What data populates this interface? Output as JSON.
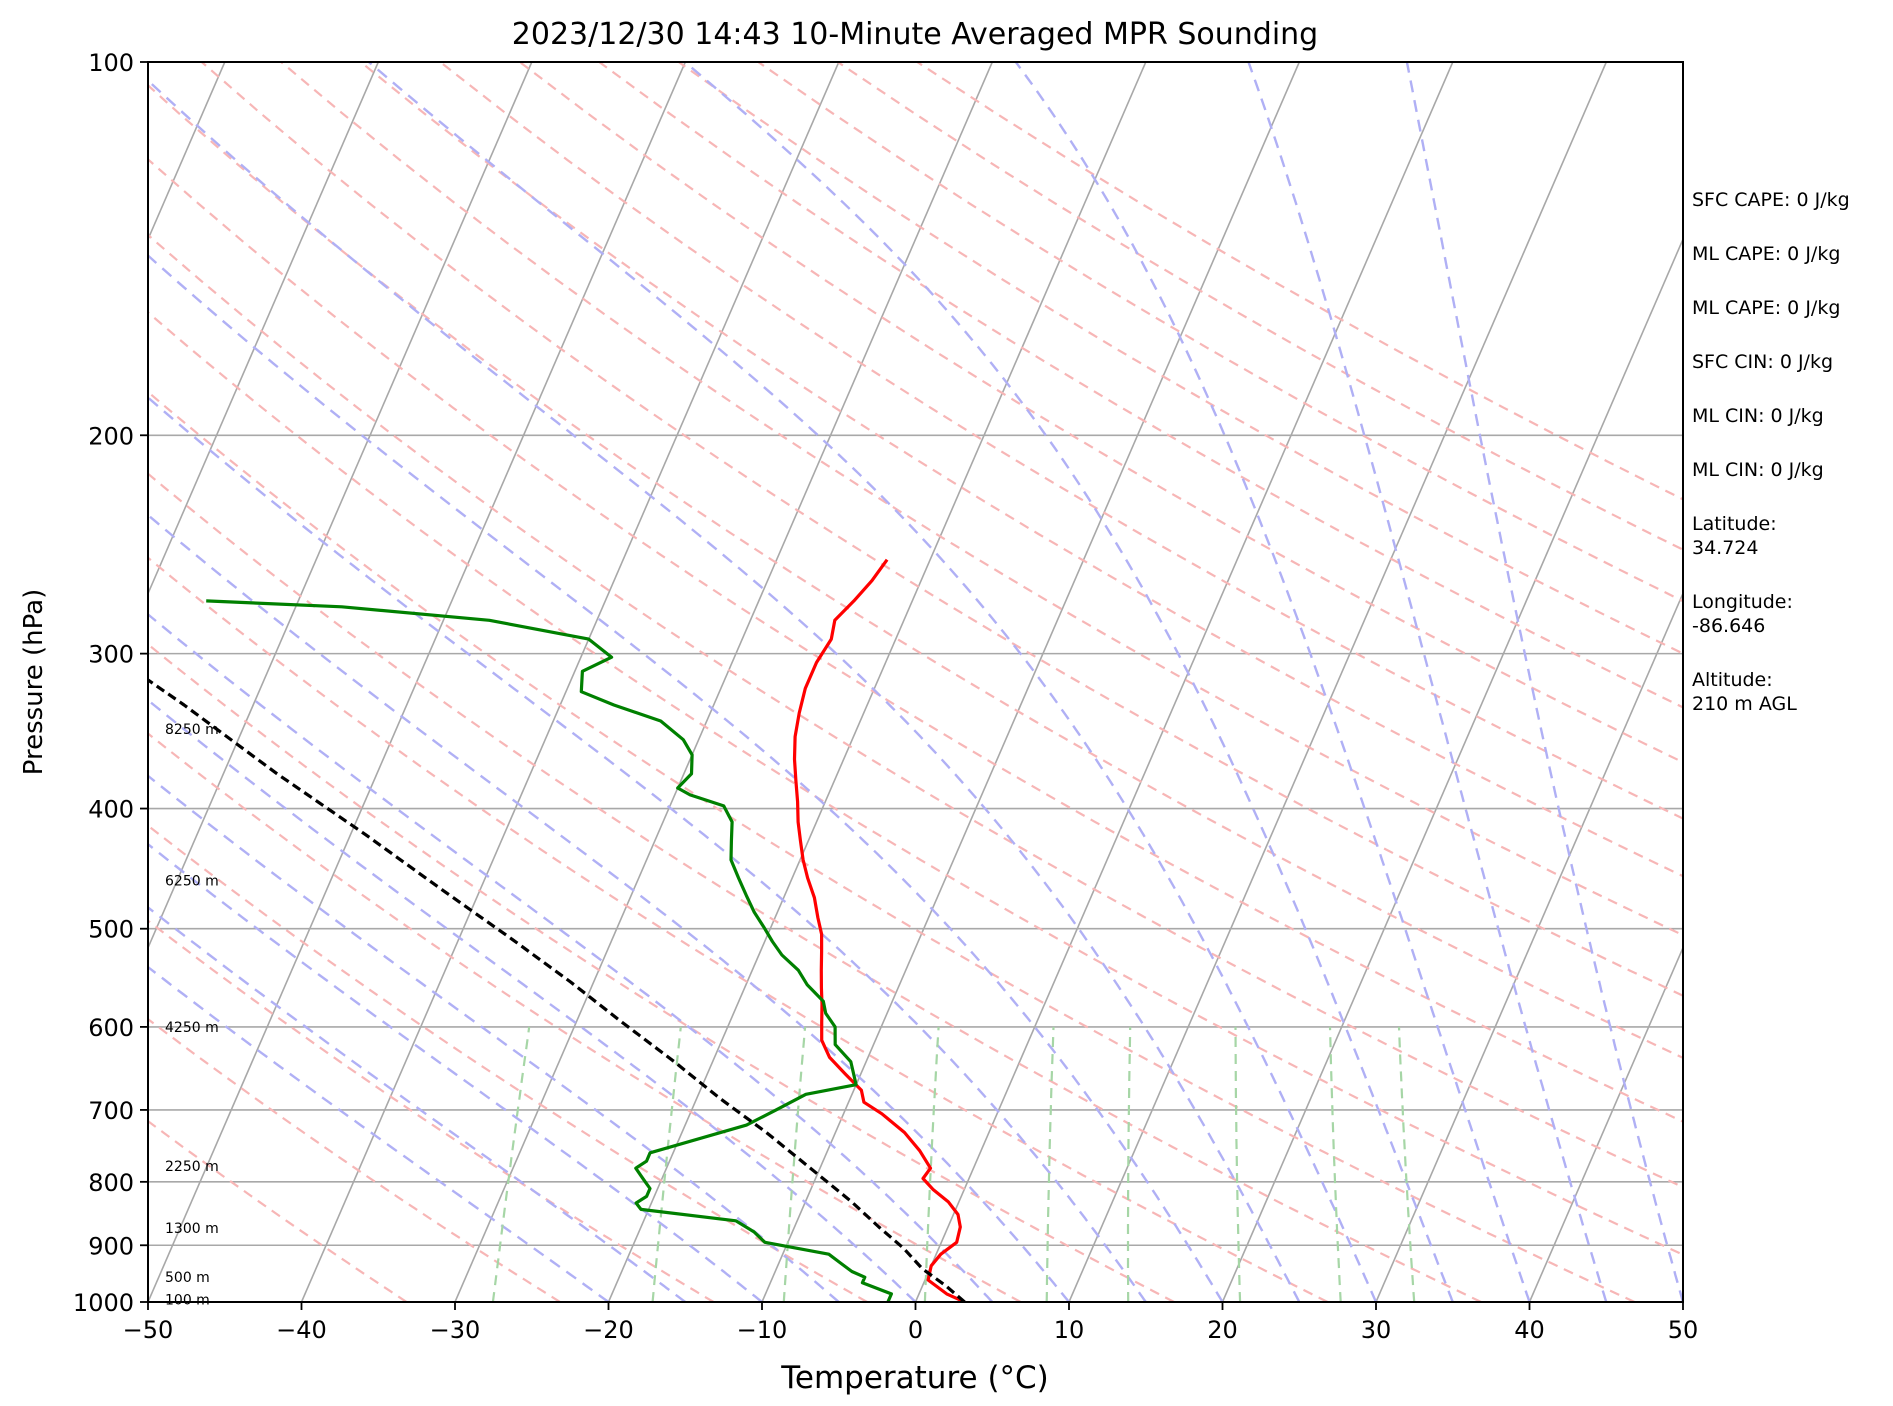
{
  "chart_data": {
    "type": "line",
    "title": "2023/12/30 14:43 10-Minute Averaged MPR Sounding",
    "xlabel": "Temperature (°C)",
    "ylabel": "Pressure (hPa)",
    "xlim": [
      -50,
      50
    ],
    "ylim": [
      1000,
      100
    ],
    "y_scale": "log",
    "skew_deg_per_decade": 35.0,
    "x_ticks": [
      -50,
      -40,
      -30,
      -20,
      -10,
      0,
      10,
      20,
      30,
      40,
      50
    ],
    "x_tick_labels": [
      "−50",
      "−40",
      "−30",
      "−20",
      "−10",
      "0",
      "10",
      "20",
      "30",
      "40",
      "50"
    ],
    "y_ticks": [
      100,
      200,
      300,
      400,
      500,
      600,
      700,
      800,
      900,
      1000
    ],
    "y_tick_labels": [
      "100",
      "200",
      "300",
      "400",
      "500",
      "600",
      "700",
      "800",
      "900",
      "1000"
    ],
    "height_markers": [
      {
        "p": 345,
        "label": "8250 m"
      },
      {
        "p": 457,
        "label": "6250 m"
      },
      {
        "p": 600,
        "label": "4250 m"
      },
      {
        "p": 777,
        "label": "2250 m"
      },
      {
        "p": 872,
        "label": "1300 m"
      },
      {
        "p": 955,
        "label": "500 m"
      },
      {
        "p": 995,
        "label": "100 m"
      }
    ],
    "reference_lines": {
      "isotherm_color": "#a8a8a8",
      "isobar_color": "#a8a8a8",
      "dry_adiabat_color": "#f7b6b6",
      "moist_adiabat_color": "#b0b0f5",
      "mixing_ratio_color": "#a6d6a6"
    },
    "series": [
      {
        "name": "",
        "color": "#ff0000",
        "points": [
          [
            3.2,
            1000
          ],
          [
            1.8,
            985
          ],
          [
            0.2,
            960
          ],
          [
            0.0,
            935
          ],
          [
            0.3,
            915
          ],
          [
            1.0,
            895
          ],
          [
            0.8,
            870
          ],
          [
            0.3,
            850
          ],
          [
            -0.7,
            830
          ],
          [
            -2.0,
            812
          ],
          [
            -3.0,
            795
          ],
          [
            -2.8,
            780
          ],
          [
            -4.0,
            755
          ],
          [
            -5.5,
            730
          ],
          [
            -7.5,
            705
          ],
          [
            -9.0,
            690
          ],
          [
            -9.5,
            675
          ],
          [
            -11.0,
            655
          ],
          [
            -12.5,
            635
          ],
          [
            -13.5,
            615
          ],
          [
            -14.0,
            595
          ],
          [
            -14.5,
            575
          ],
          [
            -15.0,
            558
          ],
          [
            -15.5,
            540
          ],
          [
            -16.0,
            522
          ],
          [
            -16.5,
            505
          ],
          [
            -17.2,
            490
          ],
          [
            -18.0,
            472
          ],
          [
            -19.0,
            455
          ],
          [
            -19.8,
            440
          ],
          [
            -20.5,
            425
          ],
          [
            -21.2,
            410
          ],
          [
            -21.8,
            395
          ],
          [
            -22.5,
            380
          ],
          [
            -23.2,
            365
          ],
          [
            -23.8,
            350
          ],
          [
            -24.2,
            335
          ],
          [
            -24.5,
            320
          ],
          [
            -24.5,
            305
          ],
          [
            -24.2,
            292
          ],
          [
            -24.5,
            282
          ],
          [
            -23.8,
            272
          ],
          [
            -23.2,
            262
          ],
          [
            -22.8,
            252
          ]
        ]
      },
      {
        "name": "",
        "color": "#008000",
        "points": [
          [
            -1.8,
            1000
          ],
          [
            -1.8,
            985
          ],
          [
            -4.0,
            965
          ],
          [
            -4.0,
            955
          ],
          [
            -5.0,
            945
          ],
          [
            -6.0,
            930
          ],
          [
            -7.0,
            915
          ],
          [
            -11.5,
            895
          ],
          [
            -12.5,
            878
          ],
          [
            -14.0,
            860
          ],
          [
            -20.5,
            842
          ],
          [
            -21.0,
            832
          ],
          [
            -20.5,
            822
          ],
          [
            -20.5,
            810
          ],
          [
            -21.0,
            800
          ],
          [
            -21.5,
            790
          ],
          [
            -22.0,
            780
          ],
          [
            -21.5,
            770
          ],
          [
            -21.5,
            758
          ],
          [
            -16.0,
            720
          ],
          [
            -14.5,
            700
          ],
          [
            -13.0,
            680
          ],
          [
            -10.0,
            668
          ],
          [
            -11.0,
            640
          ],
          [
            -12.5,
            620
          ],
          [
            -13.0,
            600
          ],
          [
            -14.0,
            585
          ],
          [
            -14.5,
            572
          ],
          [
            -16.0,
            555
          ],
          [
            -17.0,
            540
          ],
          [
            -18.5,
            525
          ],
          [
            -19.5,
            512
          ],
          [
            -20.5,
            498
          ],
          [
            -21.5,
            485
          ],
          [
            -22.5,
            470
          ],
          [
            -23.5,
            455
          ],
          [
            -24.5,
            440
          ],
          [
            -25.0,
            425
          ],
          [
            -25.5,
            410
          ],
          [
            -26.5,
            398
          ],
          [
            -29.0,
            390
          ],
          [
            -30.0,
            385
          ],
          [
            -29.5,
            375
          ],
          [
            -30.0,
            362
          ],
          [
            -31.0,
            352
          ],
          [
            -33.0,
            340
          ],
          [
            -36.5,
            330
          ],
          [
            -39.0,
            322
          ],
          [
            -39.5,
            310
          ],
          [
            -38.0,
            302
          ],
          [
            -40.0,
            292
          ],
          [
            -47.0,
            282
          ],
          [
            -57.0,
            275
          ],
          [
            -66.0,
            272
          ]
        ]
      },
      {
        "name": "",
        "color": "#000000",
        "dashed": true,
        "points": [
          [
            3.2,
            1000
          ],
          [
            1.5,
            970
          ],
          [
            -0.5,
            940
          ],
          [
            -2.3,
            905
          ],
          [
            -4.5,
            870
          ],
          [
            -7.0,
            830
          ],
          [
            -11.0,
            775
          ],
          [
            -14.5,
            730
          ],
          [
            -18.5,
            685
          ],
          [
            -22.5,
            640
          ],
          [
            -27.0,
            595
          ],
          [
            -31.5,
            552
          ],
          [
            -36.5,
            510
          ],
          [
            -42.5,
            465
          ],
          [
            -49.0,
            420
          ],
          [
            -56.5,
            375
          ],
          [
            -64.5,
            330
          ],
          [
            -73.0,
            290
          ],
          [
            -78.0,
            265
          ]
        ]
      }
    ]
  },
  "stats": [
    {
      "text": "SFC CAPE: 0 J/kg"
    },
    {
      "text": "ML CAPE: 0 J/kg"
    },
    {
      "text": "ML CAPE: 0 J/kg"
    },
    {
      "text": "SFC CIN: 0 J/kg"
    },
    {
      "text": "ML CIN: 0 J/kg"
    },
    {
      "text": "ML CIN: 0 J/kg"
    },
    {
      "label": "Latitude:",
      "value": "34.724"
    },
    {
      "label": "Longitude:",
      "value": "-86.646"
    },
    {
      "label": "Altitude:",
      "value": "210 m AGL"
    }
  ]
}
